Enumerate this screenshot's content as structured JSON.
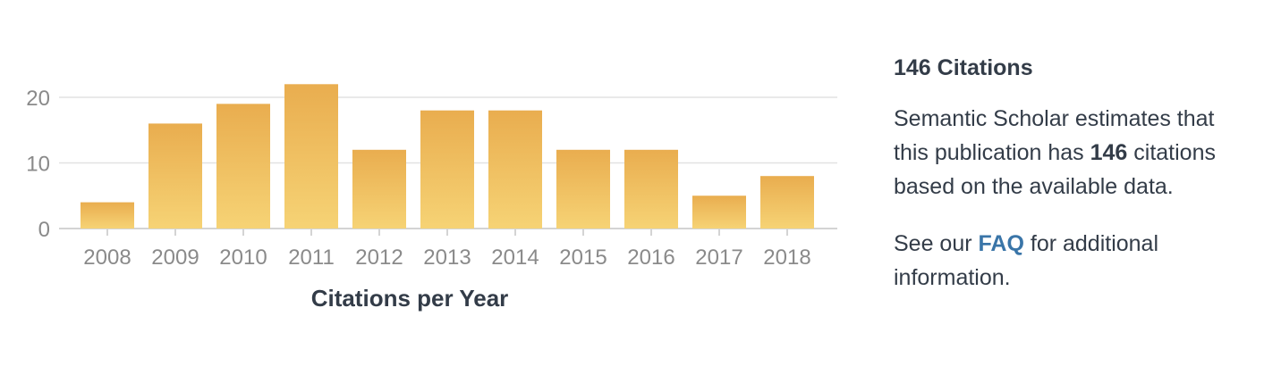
{
  "chart_data": {
    "type": "bar",
    "categories": [
      "2008",
      "2009",
      "2010",
      "2011",
      "2012",
      "2013",
      "2014",
      "2015",
      "2016",
      "2017",
      "2018"
    ],
    "values": [
      4,
      16,
      19,
      22,
      12,
      18,
      18,
      12,
      12,
      5,
      8
    ],
    "xlabel": "Citations per Year",
    "ylabel": "",
    "ylim": [
      0,
      20
    ],
    "yticks": [
      0,
      10,
      20
    ],
    "grid": true,
    "bar_color_top": "#e9ad4f",
    "bar_color_bottom": "#f6d375"
  },
  "info": {
    "title": "146 Citations",
    "desc_pre": "Semantic Scholar estimates that this publication has ",
    "desc_count": "146",
    "desc_post": " citations based on the available data.",
    "faq_pre": "See our ",
    "faq_link": "FAQ",
    "faq_post": " for additional information."
  }
}
